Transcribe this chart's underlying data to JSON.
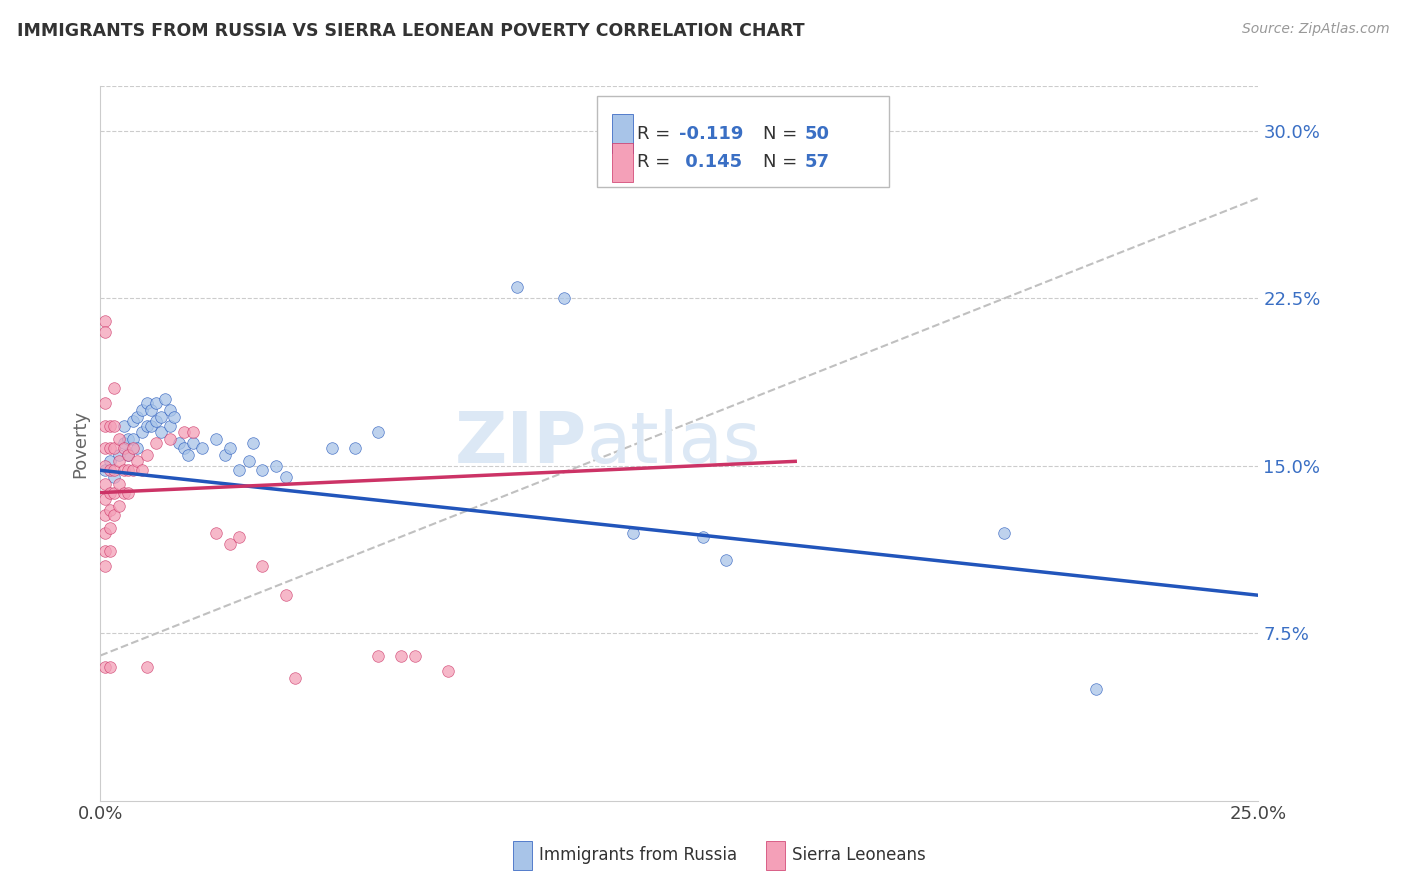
{
  "title": "IMMIGRANTS FROM RUSSIA VS SIERRA LEONEAN POVERTY CORRELATION CHART",
  "source_text": "Source: ZipAtlas.com",
  "ylabel": "Poverty",
  "xmin": 0.0,
  "xmax": 0.25,
  "ymin": 0.0,
  "ymax": 0.32,
  "ytick_labels_right": [
    "30.0%",
    "22.5%",
    "15.0%",
    "7.5%"
  ],
  "ytick_values_right": [
    0.3,
    0.225,
    0.15,
    0.075
  ],
  "color_blue": "#a8c4e8",
  "color_pink": "#f4a0b8",
  "line_color_blue": "#2255bb",
  "line_color_pink": "#cc3366",
  "watermark_color": "#dce8f5",
  "legend_label1": "Immigrants from Russia",
  "legend_label2": "Sierra Leoneans",
  "blue_points": [
    [
      0.001,
      0.148
    ],
    [
      0.002,
      0.152
    ],
    [
      0.003,
      0.145
    ],
    [
      0.004,
      0.155
    ],
    [
      0.005,
      0.16
    ],
    [
      0.005,
      0.168
    ],
    [
      0.006,
      0.162
    ],
    [
      0.006,
      0.155
    ],
    [
      0.007,
      0.17
    ],
    [
      0.007,
      0.162
    ],
    [
      0.008,
      0.158
    ],
    [
      0.008,
      0.172
    ],
    [
      0.009,
      0.165
    ],
    [
      0.009,
      0.175
    ],
    [
      0.01,
      0.168
    ],
    [
      0.01,
      0.178
    ],
    [
      0.011,
      0.175
    ],
    [
      0.011,
      0.168
    ],
    [
      0.012,
      0.17
    ],
    [
      0.012,
      0.178
    ],
    [
      0.013,
      0.172
    ],
    [
      0.013,
      0.165
    ],
    [
      0.014,
      0.18
    ],
    [
      0.015,
      0.175
    ],
    [
      0.015,
      0.168
    ],
    [
      0.016,
      0.172
    ],
    [
      0.017,
      0.16
    ],
    [
      0.018,
      0.158
    ],
    [
      0.019,
      0.155
    ],
    [
      0.02,
      0.16
    ],
    [
      0.022,
      0.158
    ],
    [
      0.025,
      0.162
    ],
    [
      0.027,
      0.155
    ],
    [
      0.028,
      0.158
    ],
    [
      0.03,
      0.148
    ],
    [
      0.032,
      0.152
    ],
    [
      0.033,
      0.16
    ],
    [
      0.035,
      0.148
    ],
    [
      0.038,
      0.15
    ],
    [
      0.04,
      0.145
    ],
    [
      0.05,
      0.158
    ],
    [
      0.055,
      0.158
    ],
    [
      0.06,
      0.165
    ],
    [
      0.09,
      0.23
    ],
    [
      0.1,
      0.225
    ],
    [
      0.115,
      0.12
    ],
    [
      0.13,
      0.118
    ],
    [
      0.135,
      0.108
    ],
    [
      0.195,
      0.12
    ],
    [
      0.215,
      0.05
    ]
  ],
  "pink_points": [
    [
      0.001,
      0.215
    ],
    [
      0.001,
      0.21
    ],
    [
      0.001,
      0.178
    ],
    [
      0.001,
      0.168
    ],
    [
      0.001,
      0.158
    ],
    [
      0.001,
      0.15
    ],
    [
      0.001,
      0.142
    ],
    [
      0.001,
      0.135
    ],
    [
      0.001,
      0.128
    ],
    [
      0.001,
      0.12
    ],
    [
      0.001,
      0.112
    ],
    [
      0.001,
      0.105
    ],
    [
      0.001,
      0.06
    ],
    [
      0.002,
      0.168
    ],
    [
      0.002,
      0.158
    ],
    [
      0.002,
      0.148
    ],
    [
      0.002,
      0.138
    ],
    [
      0.002,
      0.13
    ],
    [
      0.002,
      0.122
    ],
    [
      0.002,
      0.112
    ],
    [
      0.002,
      0.06
    ],
    [
      0.003,
      0.185
    ],
    [
      0.003,
      0.168
    ],
    [
      0.003,
      0.158
    ],
    [
      0.003,
      0.148
    ],
    [
      0.003,
      0.138
    ],
    [
      0.003,
      0.128
    ],
    [
      0.004,
      0.162
    ],
    [
      0.004,
      0.152
    ],
    [
      0.004,
      0.142
    ],
    [
      0.004,
      0.132
    ],
    [
      0.005,
      0.158
    ],
    [
      0.005,
      0.148
    ],
    [
      0.005,
      0.138
    ],
    [
      0.006,
      0.155
    ],
    [
      0.006,
      0.148
    ],
    [
      0.006,
      0.138
    ],
    [
      0.007,
      0.158
    ],
    [
      0.007,
      0.148
    ],
    [
      0.008,
      0.152
    ],
    [
      0.009,
      0.148
    ],
    [
      0.01,
      0.155
    ],
    [
      0.012,
      0.16
    ],
    [
      0.015,
      0.162
    ],
    [
      0.018,
      0.165
    ],
    [
      0.02,
      0.165
    ],
    [
      0.025,
      0.12
    ],
    [
      0.028,
      0.115
    ],
    [
      0.03,
      0.118
    ],
    [
      0.035,
      0.105
    ],
    [
      0.04,
      0.092
    ],
    [
      0.042,
      0.055
    ],
    [
      0.06,
      0.065
    ],
    [
      0.065,
      0.065
    ],
    [
      0.068,
      0.065
    ],
    [
      0.075,
      0.058
    ],
    [
      0.01,
      0.06
    ]
  ]
}
